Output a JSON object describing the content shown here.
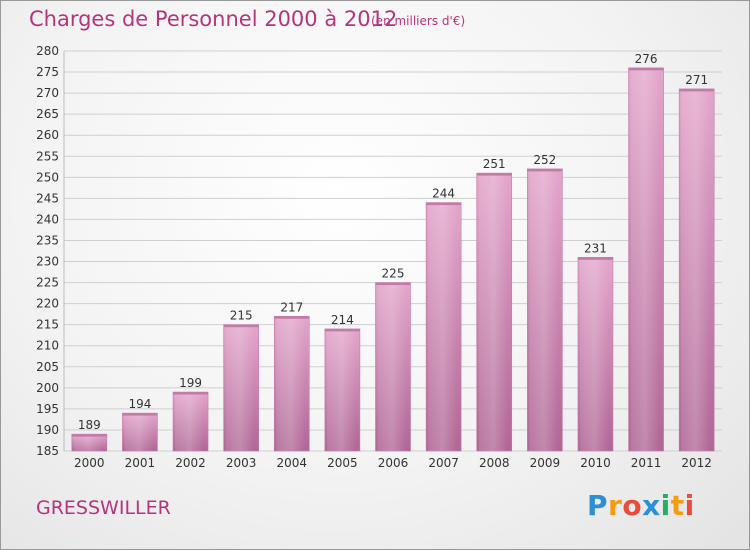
{
  "header": {
    "title": "Charges de Personnel 2000 à 2012",
    "subtitle": "(en milliers d'€)"
  },
  "footer": {
    "commune": "GRESSWILLER",
    "logo_letters": [
      "P",
      "r",
      "o",
      "x",
      "i",
      "t",
      "i"
    ],
    "logo_colors": [
      "#2d8fd5",
      "#f39c12",
      "#e74c3c",
      "#2d8fd5",
      "#27ae60",
      "#f39c12",
      "#e74c3c"
    ]
  },
  "colors": {
    "bar_top": "#e3a6cb",
    "bar_bottom": "#b06796",
    "grid": "#cfcfcf",
    "accent": "#b5357c"
  },
  "chart_data": {
    "type": "bar",
    "title": "Charges de Personnel 2000 à 2012",
    "subtitle": "(en milliers d'€)",
    "categories": [
      "2000",
      "2001",
      "2002",
      "2003",
      "2004",
      "2005",
      "2006",
      "2007",
      "2008",
      "2009",
      "2010",
      "2011",
      "2012"
    ],
    "values": [
      189,
      194,
      199,
      215,
      217,
      214,
      225,
      244,
      251,
      252,
      231,
      276,
      271
    ],
    "ylim": [
      185,
      280
    ],
    "ytick_step": 5,
    "grid": true,
    "xlabel": "",
    "ylabel": ""
  }
}
